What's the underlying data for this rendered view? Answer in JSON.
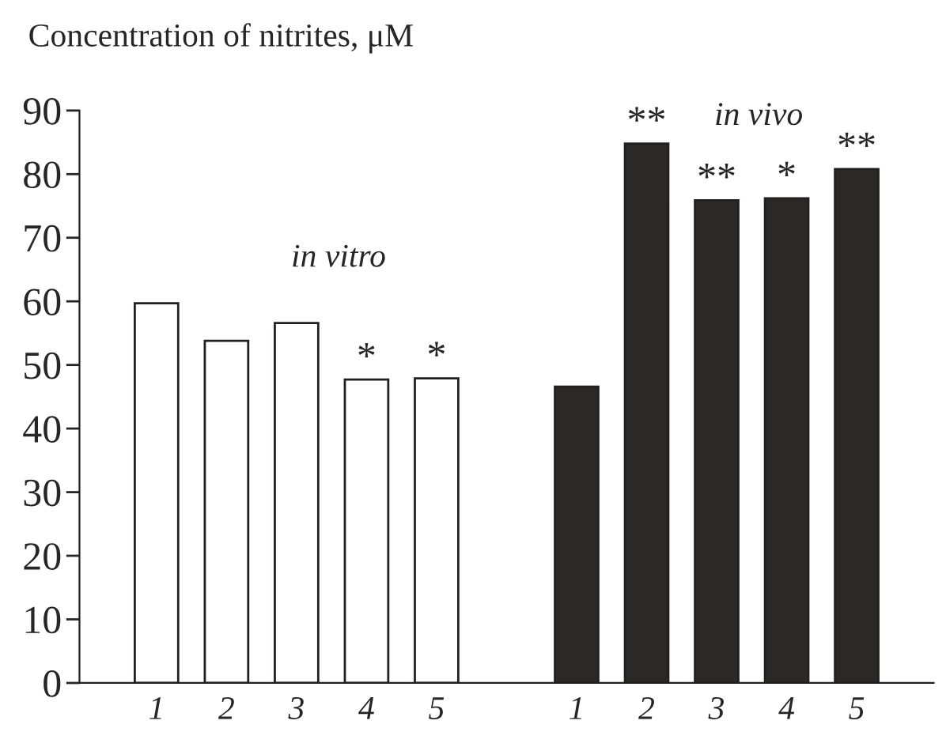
{
  "chart_data": {
    "type": "bar",
    "ylabel": "Concentration of nitrites, μM",
    "categories": [
      "1",
      "2",
      "3",
      "4",
      "5",
      null,
      "1",
      "2",
      "3",
      "4",
      "5"
    ],
    "series": [
      {
        "name": "in vitro",
        "color": "#ffffff",
        "values": [
          59.7,
          53.8,
          56.6,
          47.7,
          47.9,
          null,
          null,
          null,
          null,
          null,
          null
        ],
        "value_labels": [
          null,
          null,
          null,
          "*",
          "*",
          null,
          null,
          null,
          null,
          null,
          null
        ]
      },
      {
        "name": "in vivo",
        "color": "#2b2828",
        "values": [
          null,
          null,
          null,
          null,
          null,
          null,
          46.6,
          84.8,
          75.9,
          76.2,
          80.8
        ],
        "value_labels": [
          null,
          null,
          null,
          null,
          null,
          null,
          null,
          "**",
          "**",
          "*",
          "**"
        ]
      }
    ],
    "ylim": [
      0,
      90
    ],
    "yticks": [
      0,
      10,
      20,
      30,
      40,
      50,
      60,
      70,
      80,
      90
    ],
    "grid": false,
    "legend": false
  }
}
